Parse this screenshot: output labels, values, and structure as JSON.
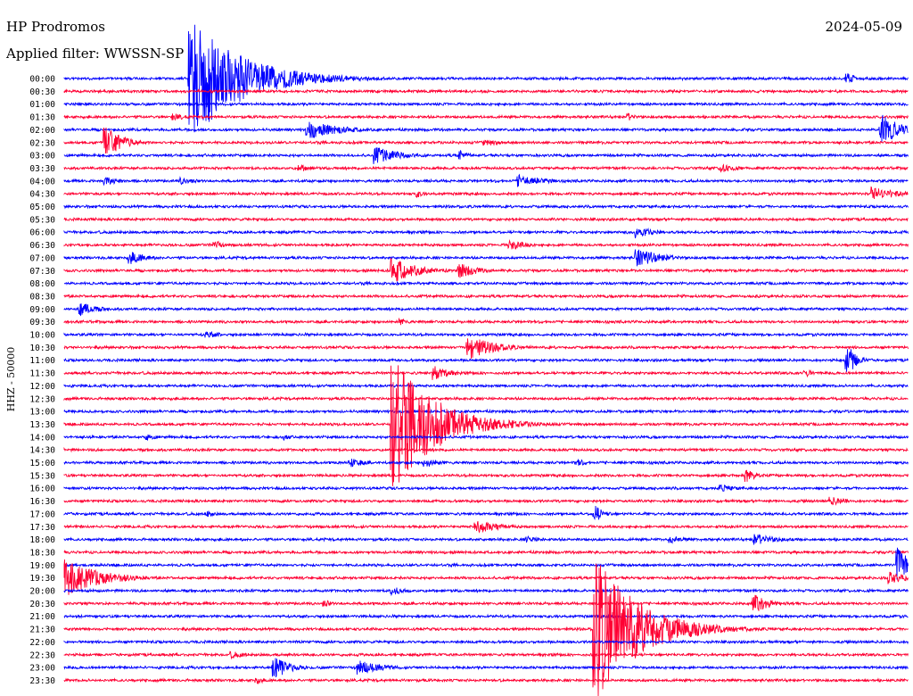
{
  "header": {
    "station": "HP Prodromos",
    "filter": "Applied filter: WWSSN-SP",
    "date": "2024-05-09"
  },
  "colors": {
    "even_trace": "#0000ff",
    "odd_trace": "#ff0033",
    "background": "#ffffff"
  },
  "chart_data": {
    "type": "line",
    "title": "HP Prodromos",
    "ylabel": "HHZ - 50000",
    "row_labels": [
      "00:00",
      "00:30",
      "01:00",
      "01:30",
      "02:00",
      "02:30",
      "03:00",
      "03:30",
      "04:00",
      "04:30",
      "05:00",
      "05:30",
      "06:00",
      "06:30",
      "07:00",
      "07:30",
      "08:00",
      "08:30",
      "09:00",
      "09:30",
      "10:00",
      "10:30",
      "11:00",
      "11:30",
      "12:00",
      "12:30",
      "13:00",
      "13:30",
      "14:00",
      "14:30",
      "15:00",
      "15:30",
      "16:00",
      "16:30",
      "17:00",
      "17:30",
      "18:00",
      "18:30",
      "19:00",
      "19:30",
      "20:00",
      "20:30",
      "21:00",
      "21:30",
      "22:00",
      "22:30",
      "23:00",
      "23:30"
    ],
    "events": [
      {
        "row": 0,
        "pos": 0.15,
        "amp": 70,
        "decay": 0.06
      },
      {
        "row": 0,
        "pos": 0.93,
        "amp": 6,
        "decay": 0.01
      },
      {
        "row": 3,
        "pos": 0.13,
        "amp": 4,
        "decay": 0.02
      },
      {
        "row": 3,
        "pos": 0.67,
        "amp": 4,
        "decay": 0.01
      },
      {
        "row": 4,
        "pos": 0.29,
        "amp": 10,
        "decay": 0.04
      },
      {
        "row": 4,
        "pos": 0.97,
        "amp": 18,
        "decay": 0.02
      },
      {
        "row": 5,
        "pos": 0.05,
        "amp": 18,
        "decay": 0.02
      },
      {
        "row": 5,
        "pos": 0.5,
        "amp": 4,
        "decay": 0.02
      },
      {
        "row": 6,
        "pos": 0.37,
        "amp": 10,
        "decay": 0.03
      },
      {
        "row": 6,
        "pos": 0.47,
        "amp": 6,
        "decay": 0.01
      },
      {
        "row": 7,
        "pos": 0.28,
        "amp": 4,
        "decay": 0.02
      },
      {
        "row": 7,
        "pos": 0.78,
        "amp": 5,
        "decay": 0.02
      },
      {
        "row": 8,
        "pos": 0.05,
        "amp": 5,
        "decay": 0.02
      },
      {
        "row": 8,
        "pos": 0.14,
        "amp": 4,
        "decay": 0.02
      },
      {
        "row": 8,
        "pos": 0.54,
        "amp": 7,
        "decay": 0.03
      },
      {
        "row": 9,
        "pos": 0.42,
        "amp": 4,
        "decay": 0.01
      },
      {
        "row": 9,
        "pos": 0.96,
        "amp": 8,
        "decay": 0.03
      },
      {
        "row": 12,
        "pos": 0.68,
        "amp": 7,
        "decay": 0.02
      },
      {
        "row": 13,
        "pos": 0.53,
        "amp": 6,
        "decay": 0.02
      },
      {
        "row": 13,
        "pos": 0.18,
        "amp": 5,
        "decay": 0.01
      },
      {
        "row": 14,
        "pos": 0.08,
        "amp": 7,
        "decay": 0.02
      },
      {
        "row": 14,
        "pos": 0.68,
        "amp": 10,
        "decay": 0.03
      },
      {
        "row": 15,
        "pos": 0.39,
        "amp": 14,
        "decay": 0.03
      },
      {
        "row": 15,
        "pos": 0.47,
        "amp": 9,
        "decay": 0.02
      },
      {
        "row": 18,
        "pos": 0.02,
        "amp": 8,
        "decay": 0.02
      },
      {
        "row": 19,
        "pos": 0.4,
        "amp": 4,
        "decay": 0.01
      },
      {
        "row": 20,
        "pos": 0.17,
        "amp": 4,
        "decay": 0.02
      },
      {
        "row": 21,
        "pos": 0.48,
        "amp": 14,
        "decay": 0.03
      },
      {
        "row": 22,
        "pos": 0.93,
        "amp": 16,
        "decay": 0.01
      },
      {
        "row": 23,
        "pos": 0.44,
        "amp": 8,
        "decay": 0.02
      },
      {
        "row": 23,
        "pos": 0.88,
        "amp": 4,
        "decay": 0.01
      },
      {
        "row": 27,
        "pos": 0.39,
        "amp": 75,
        "decay": 0.05
      },
      {
        "row": 28,
        "pos": 0.1,
        "amp": 4,
        "decay": 0.01
      },
      {
        "row": 28,
        "pos": 0.26,
        "amp": 4,
        "decay": 0.01
      },
      {
        "row": 30,
        "pos": 0.34,
        "amp": 5,
        "decay": 0.02
      },
      {
        "row": 30,
        "pos": 0.43,
        "amp": 5,
        "decay": 0.02
      },
      {
        "row": 30,
        "pos": 0.61,
        "amp": 4,
        "decay": 0.01
      },
      {
        "row": 31,
        "pos": 0.81,
        "amp": 8,
        "decay": 0.01
      },
      {
        "row": 32,
        "pos": 0.78,
        "amp": 4,
        "decay": 0.02
      },
      {
        "row": 33,
        "pos": 0.91,
        "amp": 5,
        "decay": 0.02
      },
      {
        "row": 34,
        "pos": 0.17,
        "amp": 4,
        "decay": 0.01
      },
      {
        "row": 34,
        "pos": 0.63,
        "amp": 10,
        "decay": 0.01
      },
      {
        "row": 35,
        "pos": 0.49,
        "amp": 7,
        "decay": 0.03
      },
      {
        "row": 36,
        "pos": 0.55,
        "amp": 4,
        "decay": 0.02
      },
      {
        "row": 36,
        "pos": 0.72,
        "amp": 4,
        "decay": 0.02
      },
      {
        "row": 36,
        "pos": 0.82,
        "amp": 6,
        "decay": 0.03
      },
      {
        "row": 38,
        "pos": 0.99,
        "amp": 22,
        "decay": 0.01
      },
      {
        "row": 39,
        "pos": 0.0,
        "amp": 22,
        "decay": 0.04
      },
      {
        "row": 39,
        "pos": 0.98,
        "amp": 7,
        "decay": 0.02
      },
      {
        "row": 40,
        "pos": 0.39,
        "amp": 5,
        "decay": 0.02
      },
      {
        "row": 41,
        "pos": 0.82,
        "amp": 10,
        "decay": 0.02
      },
      {
        "row": 41,
        "pos": 0.31,
        "amp": 4,
        "decay": 0.01
      },
      {
        "row": 43,
        "pos": 0.63,
        "amp": 85,
        "decay": 0.05
      },
      {
        "row": 43,
        "pos": 0.67,
        "amp": 22,
        "decay": 0.03
      },
      {
        "row": 45,
        "pos": 0.2,
        "amp": 4,
        "decay": 0.02
      },
      {
        "row": 46,
        "pos": 0.25,
        "amp": 12,
        "decay": 0.02
      },
      {
        "row": 46,
        "pos": 0.35,
        "amp": 8,
        "decay": 0.03
      },
      {
        "row": 47,
        "pos": 0.23,
        "amp": 4,
        "decay": 0.01
      }
    ]
  }
}
